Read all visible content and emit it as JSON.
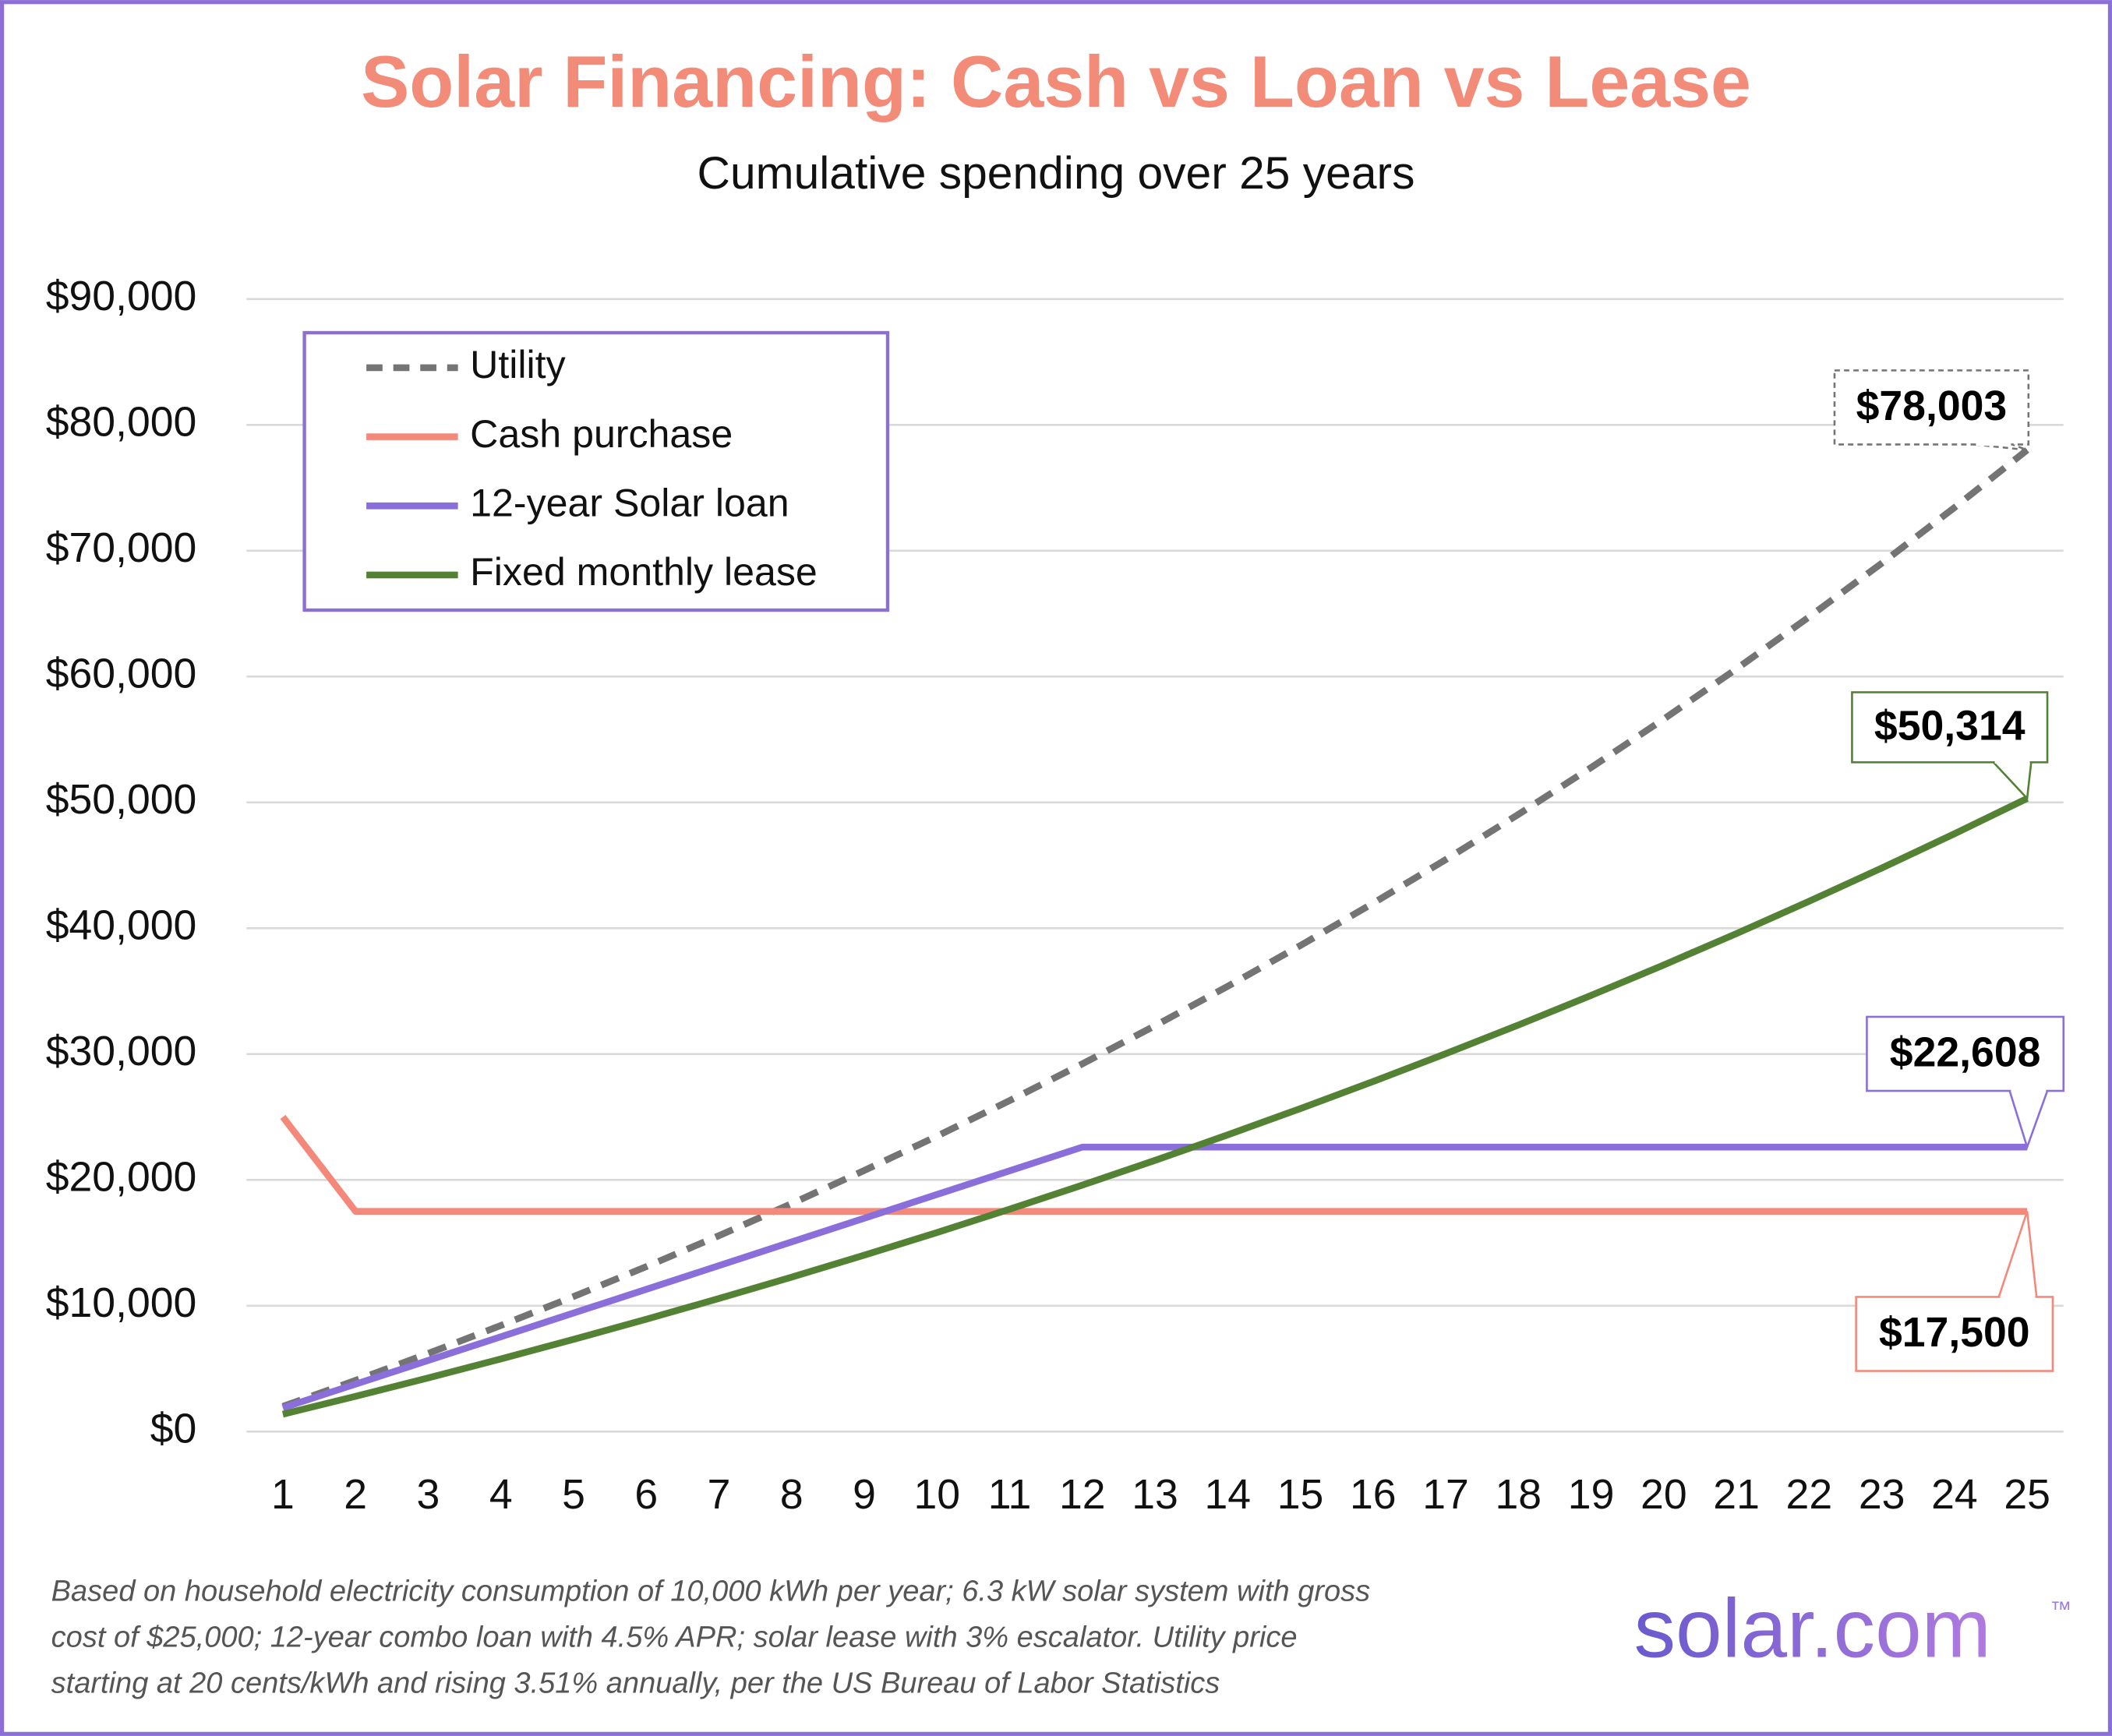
{
  "chart_data": {
    "type": "line",
    "title": "Solar Financing: Cash vs Loan vs Lease",
    "subtitle": "Cumulative spending over 25 years",
    "categories": [
      "1",
      "2",
      "3",
      "4",
      "5",
      "6",
      "7",
      "8",
      "9",
      "10",
      "11",
      "12",
      "13",
      "14",
      "15",
      "16",
      "17",
      "18",
      "19",
      "20",
      "21",
      "22",
      "23",
      "24",
      "25"
    ],
    "ylim": [
      0,
      90000
    ],
    "yticks": [
      {
        "value": 0,
        "label": "$0"
      },
      {
        "value": 10000,
        "label": "$10,000"
      },
      {
        "value": 20000,
        "label": "$20,000"
      },
      {
        "value": 30000,
        "label": "$30,000"
      },
      {
        "value": 40000,
        "label": "$40,000"
      },
      {
        "value": 50000,
        "label": "$50,000"
      },
      {
        "value": 60000,
        "label": "$60,000"
      },
      {
        "value": 70000,
        "label": "$70,000"
      },
      {
        "value": 80000,
        "label": "$80,000"
      },
      {
        "value": 90000,
        "label": "$90,000"
      }
    ],
    "grid": true,
    "legend": "upper left",
    "series": [
      {
        "name": "Utility",
        "color": "#747474",
        "style": "dashed",
        "values": [
          2000,
          4068,
          6211,
          8433,
          10729,
          13105,
          15567,
          18116,
          20748,
          23477,
          26303,
          29220,
          32250,
          35384,
          38626,
          41982,
          45452,
          49047,
          52768,
          56620,
          60608,
          64739,
          69007,
          73429,
          78003
        ],
        "value_labels": [
          null,
          null,
          null,
          null,
          null,
          null,
          null,
          null,
          null,
          null,
          null,
          null,
          null,
          null,
          null,
          null,
          null,
          null,
          null,
          null,
          null,
          null,
          null,
          null,
          "$78,003"
        ]
      },
      {
        "name": "Cash purchase",
        "color": "#f4897b",
        "style": "solid",
        "values": [
          25000,
          17500,
          17500,
          17500,
          17500,
          17500,
          17500,
          17500,
          17500,
          17500,
          17500,
          17500,
          17500,
          17500,
          17500,
          17500,
          17500,
          17500,
          17500,
          17500,
          17500,
          17500,
          17500,
          17500,
          17500
        ],
        "value_labels": [
          null,
          null,
          null,
          null,
          null,
          null,
          null,
          null,
          null,
          null,
          null,
          null,
          null,
          null,
          null,
          null,
          null,
          null,
          null,
          null,
          null,
          null,
          null,
          null,
          "$17,500"
        ]
      },
      {
        "name": "12-year Solar loan",
        "color": "#8a6fdb",
        "style": "solid",
        "values": [
          1884,
          3768,
          5652,
          7536,
          9420,
          11304,
          13188,
          15072,
          16956,
          18840,
          20724,
          22608,
          22608,
          22608,
          22608,
          22608,
          22608,
          22608,
          22608,
          22608,
          22608,
          22608,
          22608,
          22608,
          22608
        ],
        "value_labels": [
          null,
          null,
          null,
          null,
          null,
          null,
          null,
          null,
          null,
          null,
          null,
          null,
          null,
          null,
          null,
          null,
          null,
          null,
          null,
          null,
          null,
          null,
          null,
          null,
          "$22,608"
        ]
      },
      {
        "name": "Fixed monthly lease",
        "color": "#548235",
        "style": "solid",
        "values": [
          1380,
          2801,
          4265,
          5773,
          7327,
          8928,
          10574,
          12272,
          14020,
          15818,
          17672,
          19586,
          21550,
          23578,
          25667,
          27815,
          30028,
          32310,
          34660,
          37080,
          39573,
          42140,
          44785,
          47508,
          50314
        ],
        "value_labels": [
          null,
          null,
          null,
          null,
          null,
          null,
          null,
          null,
          null,
          null,
          null,
          null,
          null,
          null,
          null,
          null,
          null,
          null,
          null,
          null,
          null,
          null,
          null,
          null,
          "$50,314"
        ]
      }
    ],
    "footnote": [
      "Based on household electricity consumption of 10,000 kWh per year; 6.3 kW solar system with gross",
      "cost of $25,000; 12-year combo loan with 4.5% APR; solar lease with 3% escalator. Utility price",
      "starting at 20 cents/kWh and rising 3.51% annually, per the US Bureau of Labor Statistics"
    ],
    "brand": "solar.com",
    "brand_mark": "™"
  }
}
